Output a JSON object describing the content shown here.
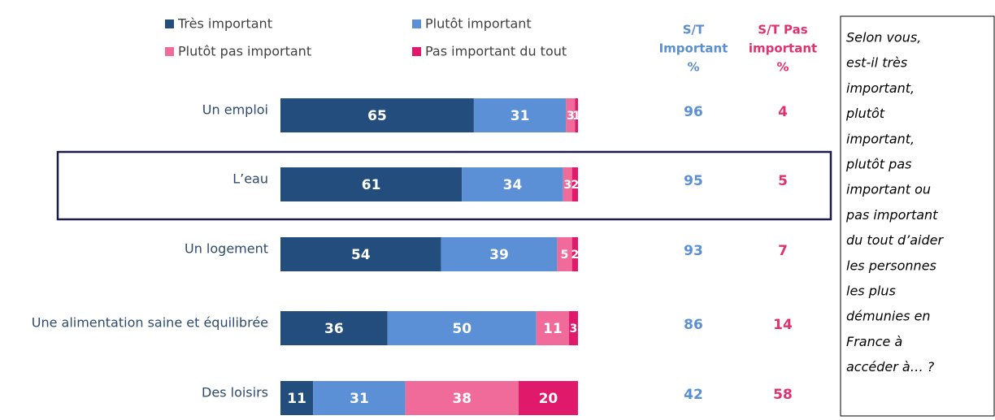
{
  "chart_data": {
    "type": "stacked-bar-horizontal",
    "categories": [
      "Un emploi",
      "L’eau",
      "Un logement",
      "Une alimentation saine et équilibrée",
      "Des loisirs"
    ],
    "series": [
      {
        "name": "Très important",
        "color": "#234d7d",
        "values": [
          65,
          61,
          54,
          36,
          11
        ]
      },
      {
        "name": "Plutôt important",
        "color": "#5b8fd6",
        "values": [
          31,
          34,
          39,
          50,
          31
        ]
      },
      {
        "name": "Plutôt pas important",
        "color": "#f06b9a",
        "values": [
          3,
          3,
          5,
          11,
          38
        ]
      },
      {
        "name": "Pas important du tout",
        "color": "#e0196a",
        "values": [
          1,
          2,
          2,
          3,
          20
        ]
      }
    ],
    "xlim": [
      0,
      100
    ],
    "summary_columns": [
      {
        "header": [
          "S/T",
          "Important",
          "%"
        ],
        "color": "#5b8fd0",
        "values": [
          96,
          95,
          93,
          86,
          42
        ]
      },
      {
        "header": [
          "S/T Pas",
          "important",
          "%"
        ],
        "color": "#e0326f",
        "values": [
          4,
          5,
          7,
          14,
          58
        ]
      }
    ],
    "highlight_category": 1,
    "question": [
      "Selon vous,",
      "est-il très",
      "important,",
      "plutôt",
      "important,",
      "plutôt pas",
      "important ou",
      "pas important",
      "du tout d’aider",
      "les personnes",
      "les plus",
      "démunies en",
      "France à",
      "accéder à… ?"
    ]
  }
}
